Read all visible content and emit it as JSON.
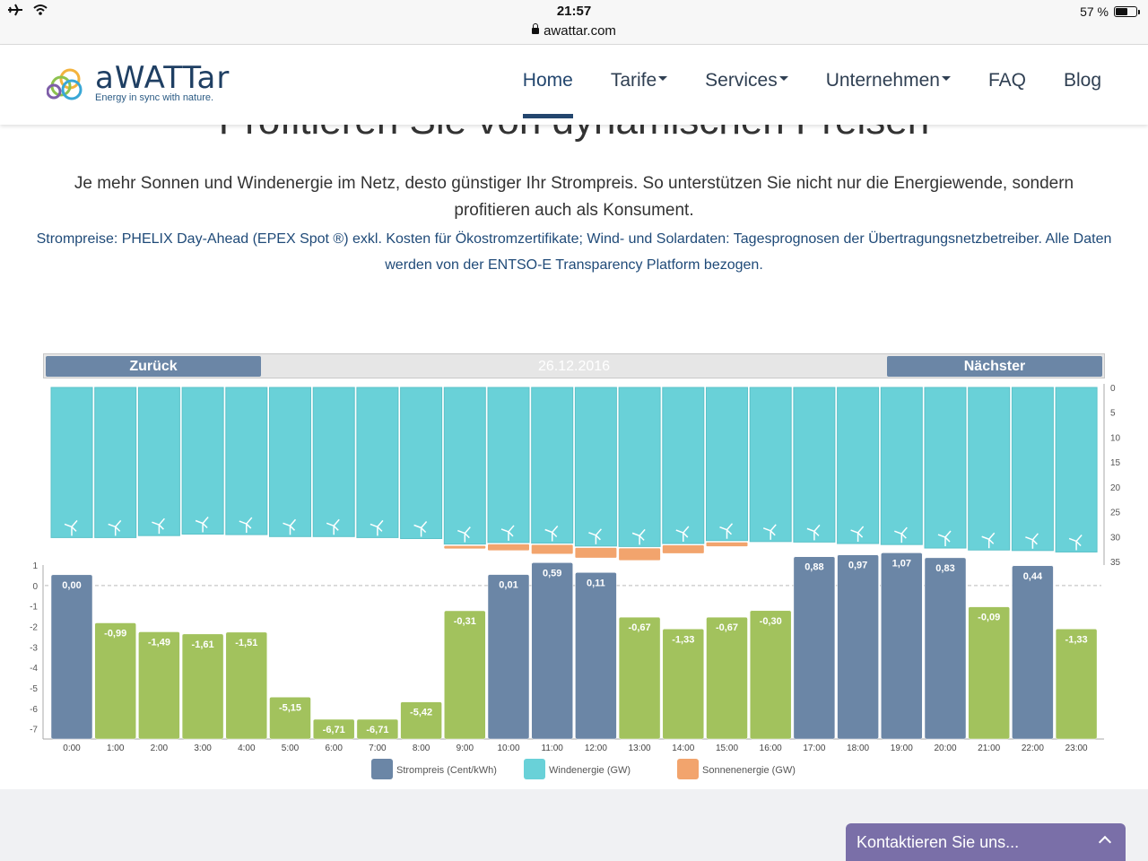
{
  "status": {
    "time": "21:57",
    "url": "awattar.com",
    "battery": "57 %",
    "battery_level": 0.57
  },
  "logo": {
    "name": "aWATTar",
    "tagline": "Energy in sync with nature."
  },
  "nav": [
    {
      "label": "Home",
      "active": true,
      "dropdown": false
    },
    {
      "label": "Tarife",
      "active": false,
      "dropdown": true
    },
    {
      "label": "Services",
      "active": false,
      "dropdown": true
    },
    {
      "label": "Unternehmen",
      "active": false,
      "dropdown": true
    },
    {
      "label": "FAQ",
      "active": false,
      "dropdown": false
    },
    {
      "label": "Blog",
      "active": false,
      "dropdown": false
    }
  ],
  "heading": "Profitieren Sie von dynamischen Preisen",
  "intro": "Je mehr Sonnen und Windenergie im Netz, desto günstiger Ihr Strompreis. So unterstützen Sie nicht nur die Energiewende, sondern profitieren auch als Konsument.",
  "source": "Strompreise: PHELIX Day-Ahead (EPEX Spot ®) exkl. Kosten für Ökostromzertifikate; Wind- und Solardaten: Tagesprognosen der Übertragungsnetzbetreiber. Alle Daten werden von der ENTSO-E Transparency Platform bezogen.",
  "chart_nav": {
    "back": "Zurück",
    "date": "26.12.2016",
    "next": "Nächster"
  },
  "contact": "Kontaktieren Sie uns...",
  "colors": {
    "price_bar": "#6b86a6",
    "cheap_bar": "#a2c25d",
    "wind": "#69d1d8",
    "solar": "#f2a46d",
    "accent": "#23466e"
  },
  "chart_data": {
    "type": "bar",
    "categories": [
      "0:00",
      "1:00",
      "2:00",
      "3:00",
      "4:00",
      "5:00",
      "6:00",
      "7:00",
      "8:00",
      "9:00",
      "10:00",
      "11:00",
      "12:00",
      "13:00",
      "14:00",
      "15:00",
      "16:00",
      "17:00",
      "18:00",
      "19:00",
      "20:00",
      "21:00",
      "22:00",
      "23:00"
    ],
    "series": [
      {
        "name": "Strompreis (Cent/kWh)",
        "values": [
          0.0,
          -0.99,
          -1.49,
          -1.61,
          -1.51,
          -5.15,
          -6.71,
          -6.71,
          -5.42,
          -0.31,
          0.01,
          0.59,
          0.11,
          -0.67,
          -1.33,
          -0.67,
          -0.3,
          0.88,
          0.97,
          1.07,
          0.83,
          -0.09,
          0.44,
          -1.33
        ],
        "labels": [
          "0,00",
          "-0,99",
          "-1,49",
          "-1,61",
          "-1,51",
          "-5,15",
          "-6,71",
          "-6,71",
          "-5,42",
          "-0,31",
          "0,01",
          "0,59",
          "0,11",
          "-0,67",
          "-1,33",
          "-0,67",
          "-0,30",
          "0,88",
          "0,97",
          "1,07",
          "0,83",
          "-0,09",
          "0,44",
          "-1,33"
        ]
      },
      {
        "name": "Windenergie (GW)",
        "values": [
          30.2,
          30.2,
          29.8,
          29.5,
          29.6,
          30.0,
          30.0,
          30.2,
          30.4,
          31.5,
          31.2,
          31.3,
          31.9,
          32.0,
          31.4,
          30.8,
          31.0,
          31.1,
          31.4,
          31.6,
          32.3,
          32.7,
          32.8,
          33.1
        ]
      },
      {
        "name": "Sonnenenergie (GW)",
        "values": [
          0,
          0,
          0,
          0,
          0,
          0,
          0,
          0,
          0,
          0.3,
          1.2,
          1.8,
          2.0,
          2.4,
          1.6,
          0.8,
          0,
          0,
          0,
          0,
          0,
          0,
          0,
          0
        ]
      }
    ],
    "price_ylim": [
      -7.5,
      1.0
    ],
    "price_ticks": [
      "1",
      "0",
      "-1",
      "-2",
      "-3",
      "-4",
      "-5",
      "-6",
      "-7"
    ],
    "energy_ylim": [
      0,
      35
    ],
    "energy_ticks": [
      "0",
      "5",
      "10",
      "15",
      "20",
      "25",
      "30",
      "35"
    ],
    "legend": [
      "Strompreis (Cent/kWh)",
      "Windenergie (GW)",
      "Sonnenenergie (GW)"
    ],
    "legend_position": "bottom"
  }
}
